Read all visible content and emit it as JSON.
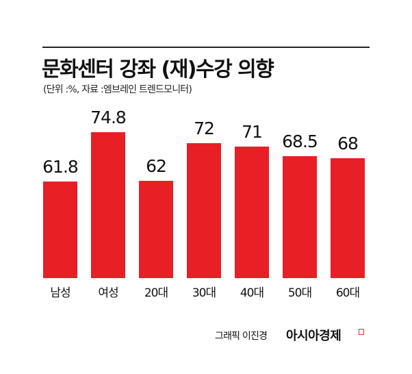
{
  "title": "문화센터 강좌 (재)수강 의향",
  "subtitle": "(단위 :%, 자료 :엠브레인 트렌드모니터)",
  "footer": {
    "credit": "그래픽 이진경",
    "brand": "아시아경제"
  },
  "colors": {
    "bar": "#e81f25",
    "text": "#111111"
  },
  "bars": [
    {
      "label": "남성",
      "value": "61.8"
    },
    {
      "label": "여성",
      "value": "74.8"
    },
    {
      "label": "20대",
      "value": "62"
    },
    {
      "label": "30대",
      "value": "72"
    },
    {
      "label": "40대",
      "value": "71"
    },
    {
      "label": "50대",
      "value": "68.5"
    },
    {
      "label": "60대",
      "value": "68"
    }
  ],
  "chart_data": {
    "type": "bar",
    "title": "문화센터 강좌 (재)수강 의향",
    "subtitle": "(단위 :%, 자료 :엠브레인 트렌드모니터)",
    "categories": [
      "남성",
      "여성",
      "20대",
      "30대",
      "40대",
      "50대",
      "60대"
    ],
    "values": [
      61.8,
      74.8,
      62,
      72,
      71,
      68.5,
      68
    ],
    "xlabel": "",
    "ylabel": "%",
    "grid": false,
    "legend": "none",
    "data_labels": true
  }
}
